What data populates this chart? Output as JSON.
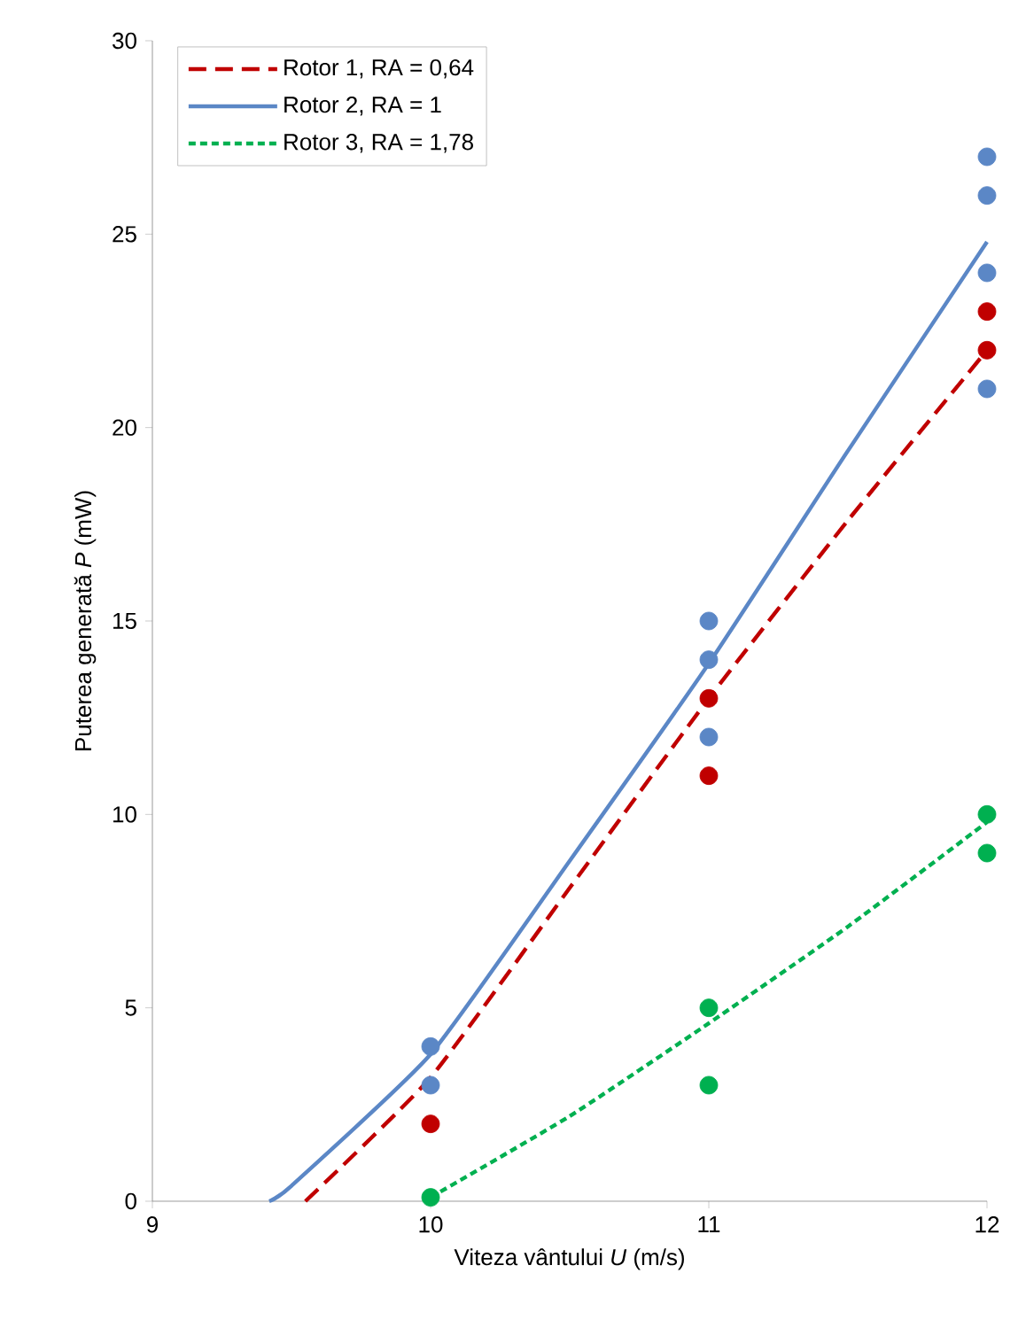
{
  "chart_data": {
    "type": "scatter",
    "xlabel": "Viteza vântului *U* (m/s)",
    "ylabel": "Puterea generată *P* (mW)",
    "xlim": [
      9,
      12
    ],
    "xticks": [
      9,
      10,
      11,
      12
    ],
    "ylim": [
      0,
      30
    ],
    "yticks": [
      0,
      5,
      10,
      15,
      20,
      25,
      30
    ],
    "legend": "top left",
    "grid": false,
    "marker": "circle",
    "series": [
      {
        "color": "#5b87c6",
        "x": [
          10,
          10,
          11,
          11,
          11,
          12,
          12,
          12,
          12
        ],
        "values": [
          4,
          3,
          15,
          14,
          12,
          27,
          26,
          24,
          21
        ]
      },
      {
        "color": "#c00000",
        "x": [
          10,
          11,
          11,
          12,
          12
        ],
        "values": [
          2,
          13,
          11,
          23,
          22
        ]
      },
      {
        "color": "#00b050",
        "x": [
          10,
          11,
          11,
          12,
          12
        ],
        "values": [
          0.1,
          5,
          3,
          10,
          9
        ]
      },
      {
        "type": "line",
        "name": "Rotor 1, RA = 0,64",
        "color": "#c00000",
        "line_style": "dashed",
        "marker": "none",
        "x": [
          9.55,
          10,
          10.5,
          11,
          11.5,
          12
        ],
        "values": [
          0,
          3.2,
          8.1,
          13.0,
          17.6,
          22.0
        ]
      },
      {
        "type": "line",
        "name": "Rotor 2, RA = 1",
        "color": "#5b87c6",
        "line_style": "solid",
        "marker": "none",
        "x": [
          9.42,
          9.5,
          10,
          10.5,
          11,
          11.5,
          12
        ],
        "values": [
          0,
          0.4,
          3.8,
          8.8,
          13.9,
          19.4,
          24.8
        ]
      },
      {
        "type": "line",
        "name": "Rotor 3, RA = 1,78",
        "color": "#00b050",
        "line_style": "dotted",
        "marker": "none",
        "x": [
          10,
          10.5,
          11,
          11.5,
          12
        ],
        "values": [
          0.1,
          2.2,
          4.6,
          7.1,
          9.8
        ]
      }
    ]
  }
}
